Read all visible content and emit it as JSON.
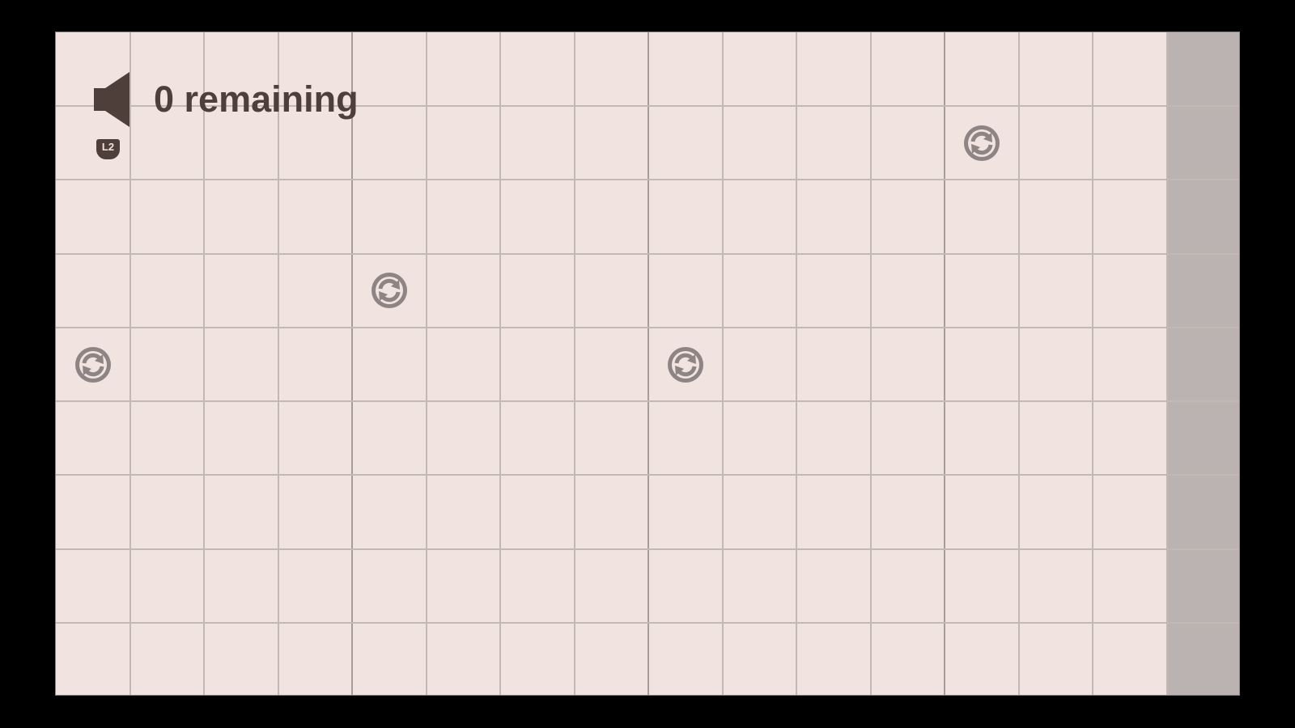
{
  "hud": {
    "remaining_label": "0 remaining",
    "sound_icon": "speaker-icon",
    "badge_label": "L2"
  },
  "board": {
    "columns": 16,
    "rows": 9,
    "major_every": 4,
    "shaded_column": 15,
    "colors": {
      "background": "#f1e3df",
      "shaded": "#bab3b1",
      "line": "#c2b8b4",
      "major_line": "#a69d99",
      "icon": "#8e8483",
      "text": "#4f3f3a"
    },
    "rotate_tiles": [
      {
        "col": 12,
        "row": 1,
        "icon": "rotate-icon"
      },
      {
        "col": 4,
        "row": 3,
        "icon": "rotate-icon"
      },
      {
        "col": 0,
        "row": 4,
        "icon": "rotate-icon"
      },
      {
        "col": 8,
        "row": 4,
        "icon": "rotate-icon"
      }
    ]
  }
}
